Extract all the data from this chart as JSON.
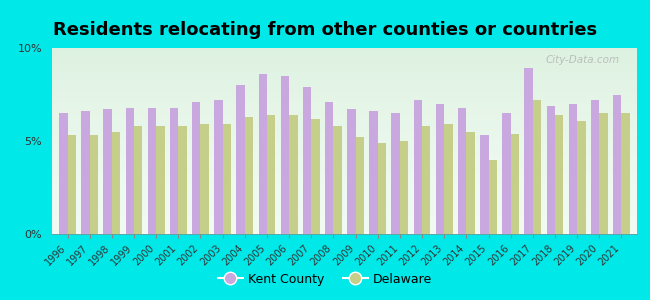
{
  "title": "Residents relocating from other counties or countries",
  "years": [
    1996,
    1997,
    1998,
    1999,
    2000,
    2001,
    2002,
    2003,
    2004,
    2005,
    2006,
    2007,
    2008,
    2009,
    2010,
    2011,
    2012,
    2013,
    2014,
    2015,
    2016,
    2017,
    2018,
    2019,
    2020,
    2021
  ],
  "kent_county": [
    6.5,
    6.6,
    6.7,
    6.8,
    6.8,
    6.8,
    7.1,
    7.2,
    8.0,
    8.6,
    8.5,
    7.9,
    7.1,
    6.7,
    6.6,
    6.5,
    7.2,
    7.0,
    6.8,
    5.3,
    6.5,
    8.9,
    6.9,
    7.0,
    7.2,
    7.5
  ],
  "delaware": [
    5.3,
    5.3,
    5.5,
    5.8,
    5.8,
    5.8,
    5.9,
    5.9,
    6.3,
    6.4,
    6.4,
    6.2,
    5.8,
    5.2,
    4.9,
    5.0,
    5.8,
    5.9,
    5.5,
    4.0,
    5.4,
    7.2,
    6.4,
    6.1,
    6.5,
    6.5
  ],
  "kent_color": "#c9a8df",
  "delaware_color": "#c5cf8a",
  "background_top": "#f0faf4",
  "background_bottom": "#d8f0e0",
  "outer_background": "#00e8e8",
  "ylim": [
    0,
    10
  ],
  "yticks": [
    0,
    5,
    10
  ],
  "ytick_labels": [
    "0%",
    "5%",
    "10%"
  ],
  "title_fontsize": 13,
  "legend_labels": [
    "Kent County",
    "Delaware"
  ],
  "watermark": "City-Data.com"
}
